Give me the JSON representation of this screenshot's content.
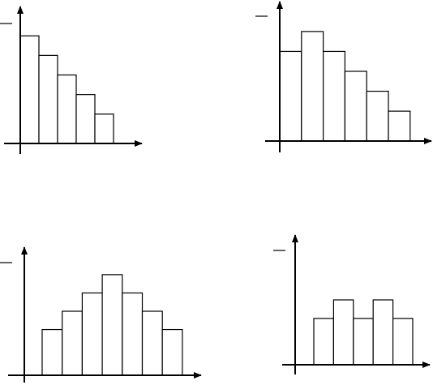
{
  "chart_data": [
    {
      "type": "bar",
      "values": [
        5.5,
        4.5,
        3.5,
        2.5,
        1.5
      ],
      "ylim": [
        0,
        7
      ],
      "color": "#ffffff",
      "edgecolor": "#000000"
    },
    {
      "type": "bar",
      "values": [
        4.5,
        5.5,
        4.5,
        3.5,
        2.5,
        1.5
      ],
      "ylim": [
        0,
        7
      ],
      "color": "#ffffff",
      "edgecolor": "#000000"
    },
    {
      "type": "bar",
      "values": [
        2.5,
        3.5,
        4.5,
        5.5,
        4.5,
        3.5,
        2.5
      ],
      "ylim": [
        0,
        7
      ],
      "color": "#ffffff",
      "edgecolor": "#000000"
    },
    {
      "type": "bar",
      "values": [
        2.5,
        3.5,
        2.5,
        3.5,
        2.5
      ],
      "ylim": [
        0,
        7
      ],
      "color": "#ffffff",
      "edgecolor": "#000000"
    }
  ]
}
